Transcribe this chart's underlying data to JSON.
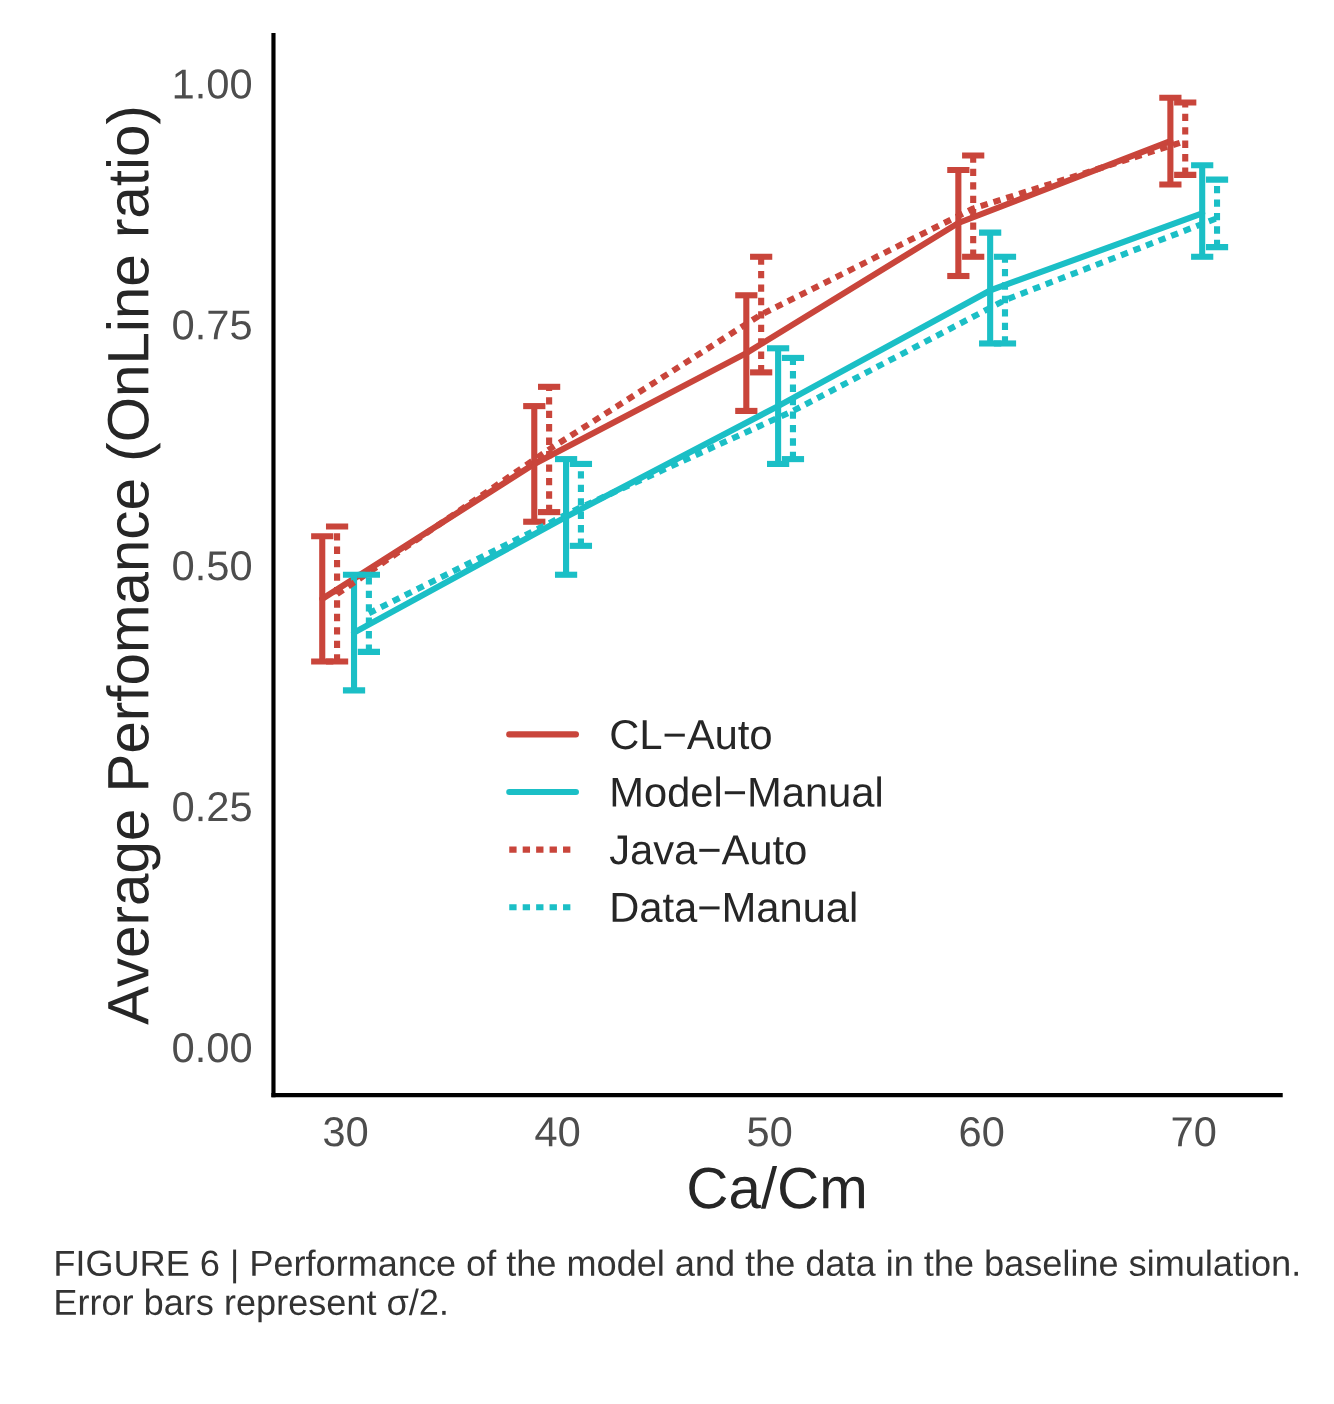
{
  "chart_data": {
    "type": "line",
    "xlabel": "Ca/Cm",
    "ylabel": "Average Perfomance (OnLine ratio)",
    "xlim": [
      26.6,
      74.1
    ],
    "xticks": [
      30,
      40,
      50,
      60,
      70
    ],
    "ylim": [
      -0.05,
      1.05
    ],
    "yticks": [
      {
        "value": 0,
        "label": "0.00"
      },
      {
        "value": 0.25,
        "label": "0.25"
      },
      {
        "value": 0.5,
        "label": "0.50"
      },
      {
        "value": 0.75,
        "label": "0.75"
      },
      {
        "value": 1,
        "label": "1.00"
      }
    ],
    "grid": false,
    "legend": "bottom",
    "marker": "none",
    "series": [
      {
        "name": "CL−Auto",
        "color": "#c9453b",
        "line_style": "solid",
        "x": [
          28.9,
          38.9,
          48.9,
          58.9,
          68.9
        ],
        "values": [
          0.465,
          0.605,
          0.72,
          0.855,
          0.94
        ],
        "errors": [
          [
            0.4,
            0.53
          ],
          [
            0.545,
            0.665
          ],
          [
            0.66,
            0.78
          ],
          [
            0.8,
            0.91
          ],
          [
            0.895,
            0.985
          ]
        ]
      },
      {
        "name": "Model−Manual",
        "color": "#1bbfc6",
        "line_style": "solid",
        "x": [
          30.4,
          40.4,
          50.4,
          60.4,
          70.4
        ],
        "values": [
          0.43,
          0.55,
          0.665,
          0.785,
          0.865
        ],
        "errors": [
          [
            0.37,
            0.49
          ],
          [
            0.49,
            0.61
          ],
          [
            0.605,
            0.725
          ],
          [
            0.73,
            0.845
          ],
          [
            0.82,
            0.915
          ]
        ]
      },
      {
        "name": "Java−Auto",
        "color": "#c9453b",
        "line_style": "dotted",
        "x": [
          29.6,
          39.6,
          49.6,
          59.6,
          69.6
        ],
        "values": [
          0.47,
          0.62,
          0.76,
          0.87,
          0.94
        ],
        "errors": [
          [
            0.4,
            0.54
          ],
          [
            0.555,
            0.685
          ],
          [
            0.7,
            0.82
          ],
          [
            0.82,
            0.925
          ],
          [
            0.905,
            0.98
          ]
        ]
      },
      {
        "name": "Data−Manual",
        "color": "#1bbfc6",
        "line_style": "dotted",
        "x": [
          31.1,
          41.1,
          51.1,
          61.1,
          71.1
        ],
        "values": [
          0.45,
          0.56,
          0.66,
          0.775,
          0.86
        ],
        "errors": [
          [
            0.41,
            0.49
          ],
          [
            0.52,
            0.605
          ],
          [
            0.61,
            0.715
          ],
          [
            0.73,
            0.82
          ],
          [
            0.83,
            0.9
          ]
        ]
      }
    ],
    "annotations": [
      "FIGURE 6 | Performance of the model and the data in the baseline simulation. Error bars represent σ/2."
    ]
  }
}
